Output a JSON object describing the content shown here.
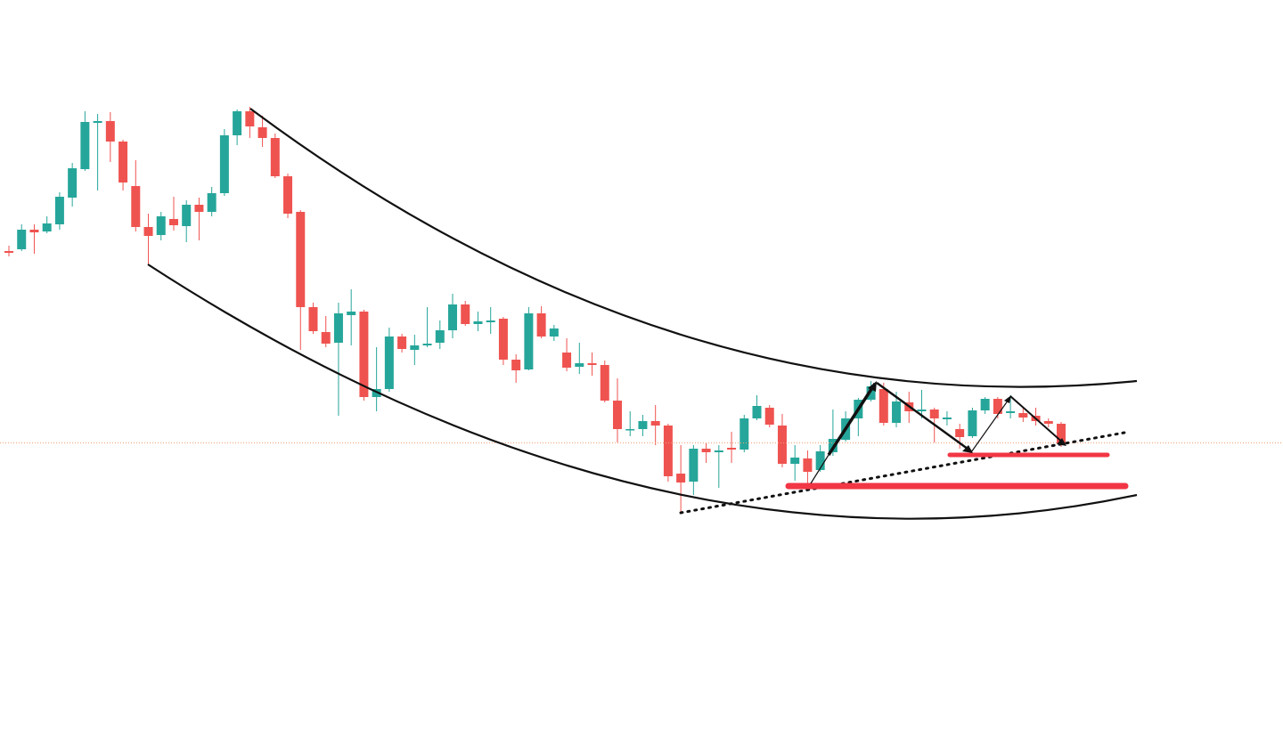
{
  "chart_data": {
    "type": "candlestick",
    "up_color": "#26a69a",
    "down_color": "#ef5350",
    "ylim": [
      0,
      829
    ],
    "series": [
      {
        "open": [
          547,
          549,
          571,
          569,
          577,
          607,
          639,
          691,
          693,
          670,
          620,
          574,
          565,
          583,
          575,
          599,
          591,
          612,
          677,
          704,
          686,
          674,
          631,
          591,
          484,
          456,
          444,
          475,
          479,
          383,
          392,
          451,
          436,
          441,
          444,
          458,
          487,
          465,
          467,
          471,
          425,
          414,
          477,
          451,
          433,
          417,
          421,
          419,
          379,
          346,
          347,
          356,
          351,
          297,
          288,
          325,
          321,
          326,
          324,
          359,
          371,
          351,
          308,
          314,
          301,
          321,
          335,
          359,
          380,
          392,
          354,
          377,
          367,
          369,
          358,
          347,
          339,
          368,
          381,
          365,
          365,
          362,
          356,
          353
        ],
        "high": [
          553,
          577,
          577,
          586,
          613,
          646,
          704,
          701,
          703,
          672,
          649,
          589,
          591,
          608,
          604,
          607,
          619,
          684,
          706,
          709,
          699,
          679,
          634,
          593,
          489,
          474,
          489,
          504,
          481,
          439,
          461,
          454,
          453,
          484,
          469,
          499,
          491,
          479,
          484,
          473,
          431,
          484,
          485,
          464,
          449,
          444,
          433,
          424,
          404,
          367,
          363,
          374,
          353,
          329,
          329,
          331,
          329,
          344,
          363,
          385,
          374,
          364,
          329,
          323,
          329,
          369,
          367,
          382,
          401,
          399,
          389,
          389,
          391,
          371,
          367,
          353,
          371,
          383,
          383,
          385,
          371,
          371,
          359,
          355
        ],
        "low": [
          541,
          547,
          544,
          567,
          571,
          597,
          637,
          615,
          647,
          615,
          569,
          532,
          559,
          570,
          557,
          559,
          586,
          609,
          666,
          674,
          664,
          629,
          584,
          436,
          454,
          439,
          362,
          441,
          379,
          367,
          389,
          433,
          419,
          439,
          437,
          449,
          463,
          457,
          454,
          419,
          399,
          413,
          449,
          446,
          412,
          409,
          407,
          377,
          332,
          339,
          339,
          329,
          288,
          252,
          273,
          309,
          281,
          309,
          321,
          357,
          349,
          304,
          289,
          279,
          299,
          317,
          333,
          339,
          378,
          351,
          349,
          354,
          359,
          332,
          351,
          325,
          337,
          364,
          359,
          359,
          355,
          351,
          349,
          327
        ],
        "close": [
          545,
          571,
          568,
          578,
          608,
          640,
          692,
          693,
          670,
          624,
          574,
          564,
          586,
          576,
          599,
          591,
          612,
          677,
          704,
          687,
          674,
          631,
          589,
          484,
          457,
          443,
          477,
          479,
          383,
          392,
          451,
          437,
          441,
          443,
          458,
          487,
          465,
          468,
          469,
          425,
          413,
          477,
          451,
          460,
          416,
          421,
          419,
          379,
          347,
          347,
          356,
          351,
          294,
          287,
          325,
          321,
          323,
          324,
          359,
          373,
          352,
          308,
          315,
          299,
          322,
          336,
          359,
          380,
          395,
          354,
          378,
          367,
          369,
          359,
          360,
          338,
          368,
          381,
          364,
          367,
          360,
          356,
          353,
          331
        ]
      }
    ]
  }
}
